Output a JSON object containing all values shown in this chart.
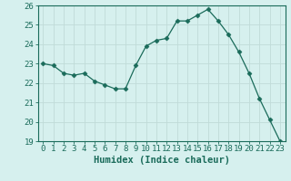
{
  "x": [
    0,
    1,
    2,
    3,
    4,
    5,
    6,
    7,
    8,
    9,
    10,
    11,
    12,
    13,
    14,
    15,
    16,
    17,
    18,
    19,
    20,
    21,
    22,
    23
  ],
  "y": [
    23.0,
    22.9,
    22.5,
    22.4,
    22.5,
    22.1,
    21.9,
    21.7,
    21.7,
    22.9,
    23.9,
    24.2,
    24.3,
    25.2,
    25.2,
    25.5,
    25.8,
    25.2,
    24.5,
    23.6,
    22.5,
    21.2,
    20.1,
    19.0
  ],
  "line_color": "#1a6b5a",
  "marker": "D",
  "marker_size": 2.5,
  "bg_color": "#d6f0ee",
  "grid_major_color": "#c0dbd8",
  "grid_minor_color": "#daecea",
  "xlabel": "Humidex (Indice chaleur)",
  "ylim": [
    19,
    26
  ],
  "xlim": [
    -0.5,
    23.5
  ],
  "yticks": [
    19,
    20,
    21,
    22,
    23,
    24,
    25,
    26
  ],
  "xticks": [
    0,
    1,
    2,
    3,
    4,
    5,
    6,
    7,
    8,
    9,
    10,
    11,
    12,
    13,
    14,
    15,
    16,
    17,
    18,
    19,
    20,
    21,
    22,
    23
  ],
  "tick_color": "#1a6b5a",
  "label_fontsize": 7.5,
  "tick_fontsize": 6.5
}
